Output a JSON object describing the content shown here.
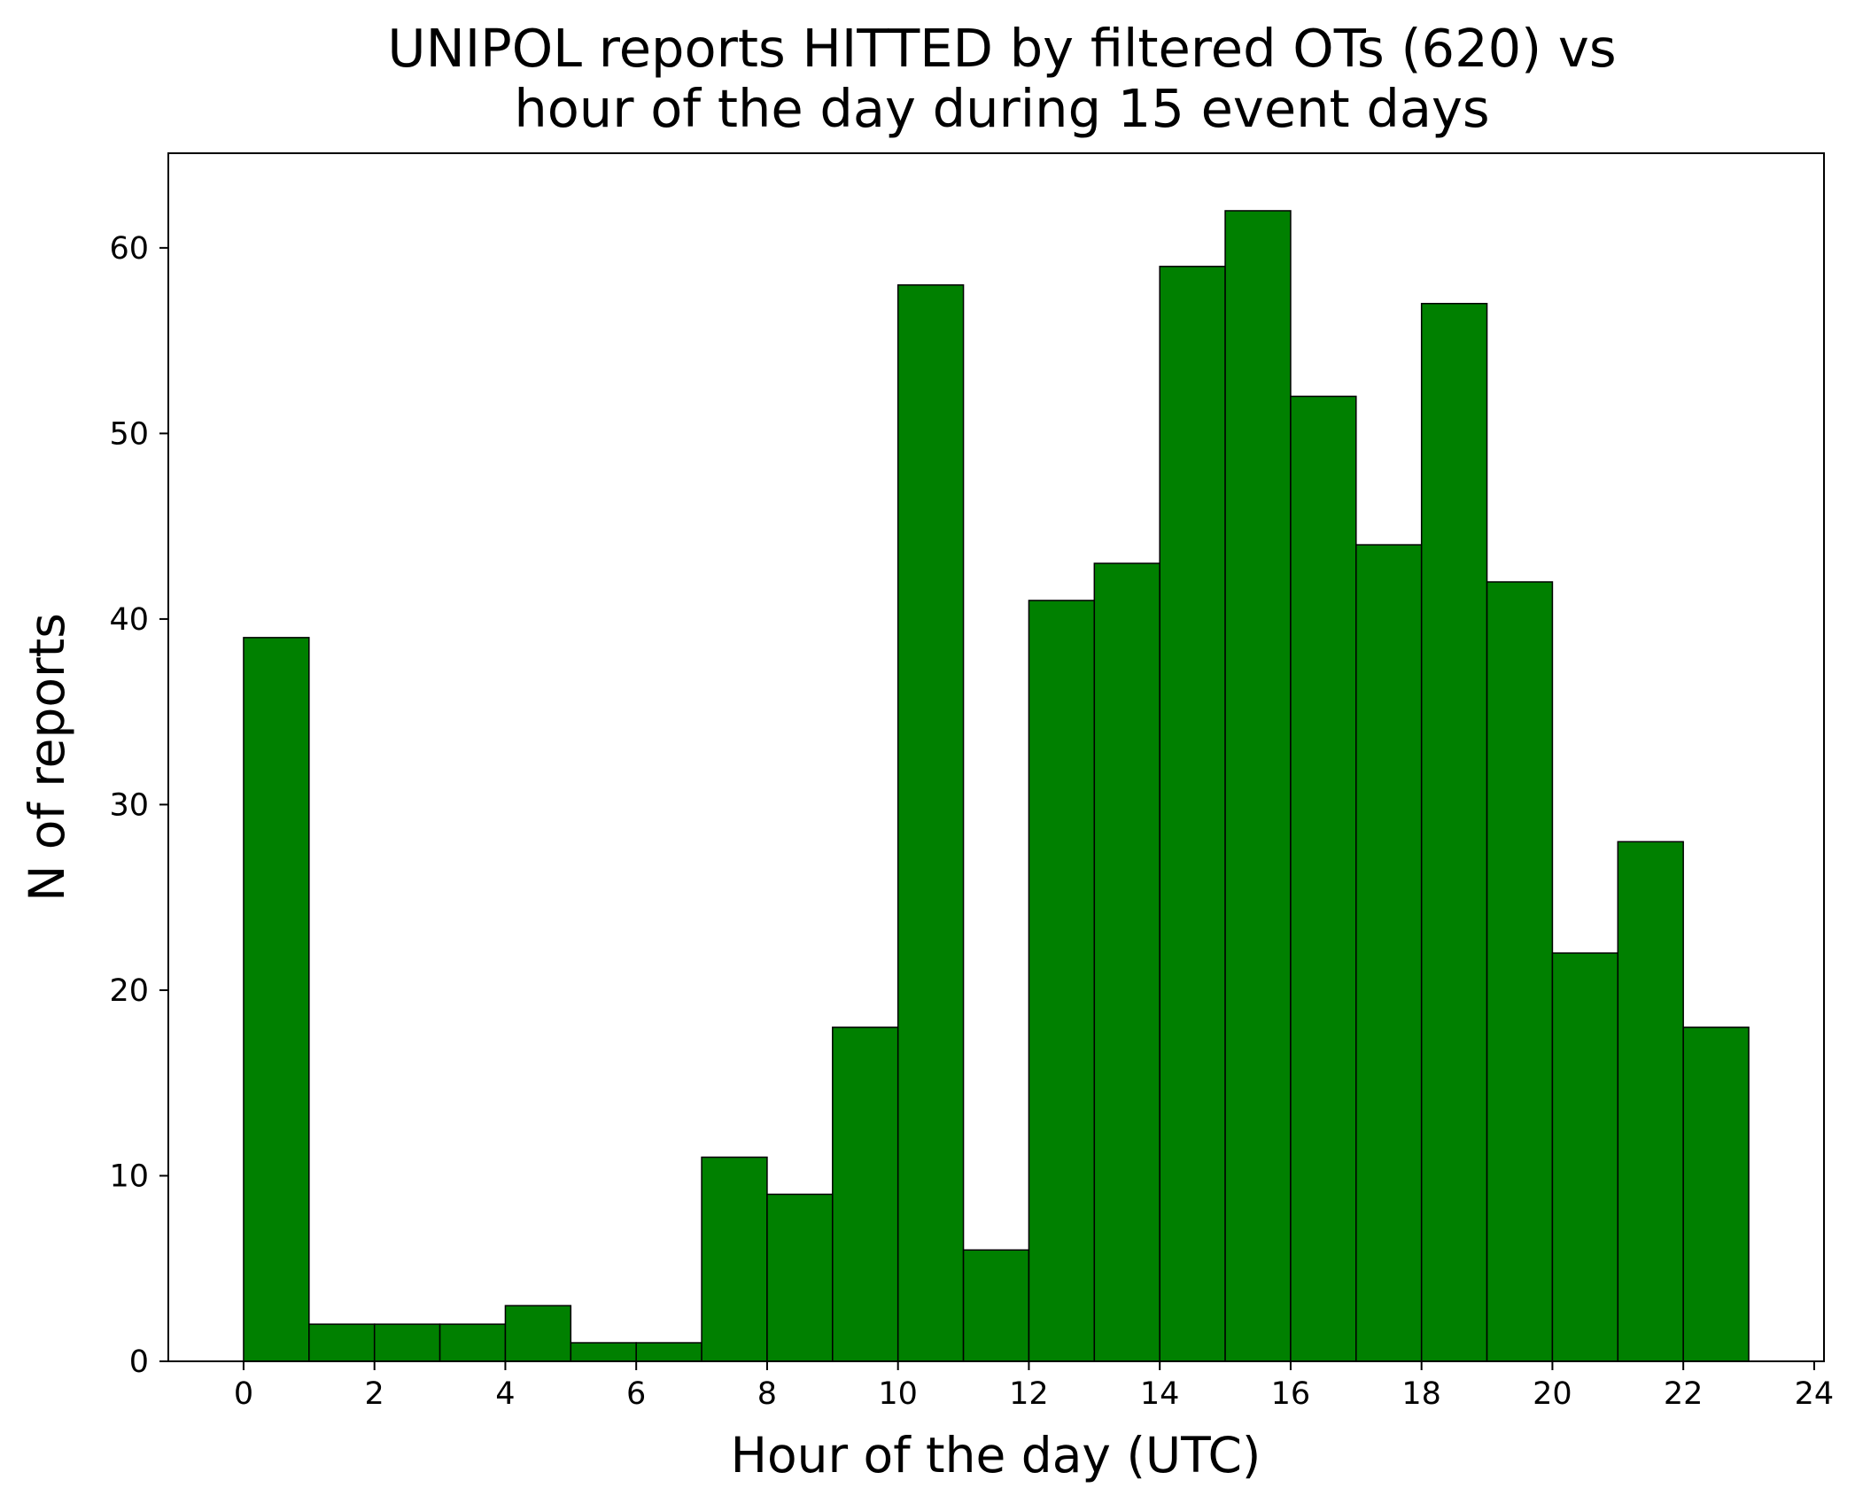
{
  "chart_data": {
    "type": "bar",
    "title_lines": [
      "UNIPOL reports HITTED by filtered OTs (620) vs",
      "hour of the day during 15 event days"
    ],
    "xlabel": "Hour of the day (UTC)",
    "ylabel": "N of reports",
    "bin_edges": [
      0,
      1,
      2,
      3,
      4,
      5,
      6,
      7,
      8,
      9,
      10,
      11,
      12,
      13,
      14,
      15,
      16,
      17,
      18,
      19,
      20,
      21,
      22,
      23
    ],
    "values": [
      39,
      2,
      2,
      2,
      3,
      1,
      1,
      11,
      9,
      18,
      58,
      6,
      41,
      43,
      59,
      62,
      52,
      44,
      57,
      42,
      22,
      28,
      18
    ],
    "xlim": [
      -1.15,
      24.15
    ],
    "ylim": [
      0,
      65.1
    ],
    "xticks": [
      0,
      2,
      4,
      6,
      8,
      10,
      12,
      14,
      16,
      18,
      20,
      22,
      24
    ],
    "yticks": [
      0,
      10,
      20,
      30,
      40,
      50,
      60
    ],
    "bar_color": "#008000",
    "edge_color": "#000000",
    "grid": false,
    "legend": false
  }
}
